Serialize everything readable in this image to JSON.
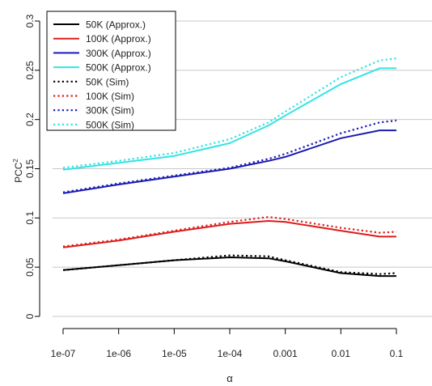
{
  "chart_data": {
    "type": "line",
    "xlabel": "α",
    "ylabel": "PCC",
    "ylabel_superscript": "2",
    "x_scale": "log10",
    "xlim": [
      1e-07,
      0.1
    ],
    "ylim": [
      0,
      0.3
    ],
    "x_ticks": [
      1e-07,
      1e-06,
      1e-05,
      0.0001,
      0.001,
      0.01,
      0.1
    ],
    "x_tick_labels": [
      "1e-07",
      "1e-06",
      "1e-05",
      "1e-04",
      "0.001",
      "0.01",
      "0.1"
    ],
    "y_ticks": [
      0,
      0.05,
      0.1,
      0.15,
      0.2,
      0.25,
      0.3
    ],
    "y_tick_labels": [
      "0",
      "0.05",
      "0.1",
      "0.15",
      "0.2",
      "0.25",
      "0.3"
    ],
    "grid": "horizontal",
    "legend_position": "top-left",
    "x": [
      1e-07,
      1e-06,
      1e-05,
      0.0001,
      0.0005,
      0.001,
      0.01,
      0.05,
      0.1
    ],
    "series": [
      {
        "name": "50K (Approx.)",
        "color": "#000000",
        "style": "solid",
        "values": [
          0.047,
          0.052,
          0.057,
          0.06,
          0.059,
          0.056,
          0.044,
          0.041,
          0.041
        ]
      },
      {
        "name": "100K (Approx.)",
        "color": "#dd1c1c",
        "style": "solid",
        "values": [
          0.07,
          0.077,
          0.086,
          0.094,
          0.097,
          0.096,
          0.087,
          0.081,
          0.081
        ]
      },
      {
        "name": "300K (Approx.)",
        "color": "#1a1ab4",
        "style": "solid",
        "values": [
          0.125,
          0.134,
          0.142,
          0.15,
          0.158,
          0.162,
          0.181,
          0.189,
          0.189
        ]
      },
      {
        "name": "500K (Approx.)",
        "color": "#33e3e3",
        "style": "solid",
        "values": [
          0.149,
          0.156,
          0.163,
          0.176,
          0.194,
          0.204,
          0.236,
          0.252,
          0.252
        ]
      },
      {
        "name": "50K (Sim)",
        "color": "#000000",
        "style": "dotted",
        "values": [
          0.047,
          0.052,
          0.057,
          0.062,
          0.061,
          0.057,
          0.045,
          0.043,
          0.044
        ]
      },
      {
        "name": "100K (Sim)",
        "color": "#dd1c1c",
        "style": "dotted",
        "values": [
          0.071,
          0.078,
          0.087,
          0.096,
          0.101,
          0.099,
          0.09,
          0.085,
          0.086
        ]
      },
      {
        "name": "300K (Sim)",
        "color": "#1a1ab4",
        "style": "dotted",
        "values": [
          0.126,
          0.135,
          0.143,
          0.151,
          0.16,
          0.165,
          0.186,
          0.197,
          0.199
        ]
      },
      {
        "name": "500K (Sim)",
        "color": "#33e3e3",
        "style": "dotted",
        "values": [
          0.151,
          0.158,
          0.166,
          0.18,
          0.197,
          0.208,
          0.243,
          0.26,
          0.262
        ]
      }
    ]
  }
}
